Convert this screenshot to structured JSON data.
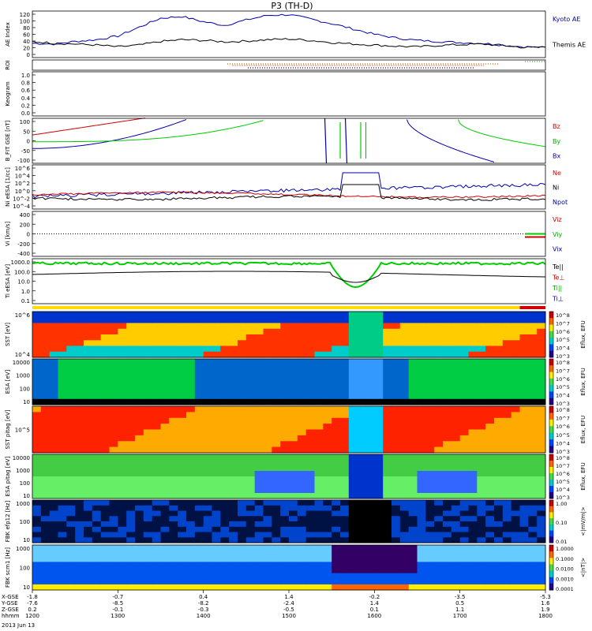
{
  "title": "P3 (TH-D)",
  "date_label": "2013 Jun 13",
  "footer": {
    "row_labels": [
      "X-GSE",
      "Y-GSE",
      "Z-GSE",
      "hhmm"
    ],
    "ticks": [
      {
        "x": "-1.8",
        "y": "-7.6",
        "z": "0.2",
        "t": "1200"
      },
      {
        "x": "-0.7",
        "y": "-8.5",
        "z": "-0.1",
        "t": "1300"
      },
      {
        "x": "0.4",
        "y": "-8.2",
        "z": "-0.3",
        "t": "1400"
      },
      {
        "x": "1.4",
        "y": "-2.4",
        "z": "-0.5",
        "t": "1500"
      },
      {
        "x": "-0.2",
        "y": "1.4",
        "z": "0.1",
        "t": "1600"
      },
      {
        "x": "-3.5",
        "y": "0.5",
        "z": "1.1",
        "t": "1700"
      },
      {
        "x": "-5.3",
        "y": "1.6",
        "z": "1.9",
        "t": "1800"
      }
    ]
  },
  "panels": [
    {
      "ylabel": "AE Index",
      "ticks": [
        "120",
        "100",
        "80",
        "60",
        "40",
        "20",
        "0"
      ],
      "right": [
        {
          "text": "Kyoto AE",
          "color": "#0000aa"
        },
        {
          "text": "Themis AE",
          "color": "#000000"
        }
      ]
    },
    {
      "ylabel": "ROI",
      "ticks": [],
      "right": []
    },
    {
      "ylabel": "Keogram",
      "ticks": [
        "1.0",
        "0.8",
        "0.6",
        "0.4",
        "0.2",
        "0.0"
      ],
      "right": []
    },
    {
      "ylabel": "B_FIT GSE [nT]",
      "ticks": [
        "100",
        "50",
        "0",
        "-50",
        "-100"
      ],
      "right": [
        {
          "text": "Bz",
          "color": "#cc0000"
        },
        {
          "text": "By",
          "color": "#00aa00"
        },
        {
          "text": "Bx",
          "color": "#0000aa"
        }
      ]
    },
    {
      "ylabel": "Ni eESA [1/cc]",
      "ticks": [
        "10^6",
        "10^4",
        "10^2",
        "10^0",
        "10^-2",
        "10^-4"
      ],
      "right": [
        {
          "text": "Ne",
          "color": "#cc0000"
        },
        {
          "text": "Ni",
          "color": "#000000"
        },
        {
          "text": "Npot",
          "color": "#0000aa"
        }
      ]
    },
    {
      "ylabel": "Vi [km/s]",
      "ticks": [
        "400",
        "200",
        "0",
        "-200",
        "-400"
      ],
      "right": [
        {
          "text": "Viz",
          "color": "#cc0000"
        },
        {
          "text": "Viy",
          "color": "#00aa00"
        },
        {
          "text": "Vix",
          "color": "#0000aa"
        }
      ]
    },
    {
      "ylabel": "Ti eESA [eV]",
      "ticks": [
        "1000.0",
        "100.0",
        "10.0",
        "1.0",
        "0.1"
      ],
      "right": [
        {
          "text": "Te||",
          "color": "#000000"
        },
        {
          "text": "Te⊥",
          "color": "#cc0000"
        },
        {
          "text": "Ti||",
          "color": "#00aa00"
        },
        {
          "text": "Ti⊥",
          "color": "#0000aa"
        }
      ]
    },
    {
      "ylabel": "SST [eV]",
      "ticks": [
        "10^6",
        "10^4"
      ],
      "right": []
    },
    {
      "ylabel": "ESA [eV]",
      "ticks": [
        "10000",
        "1000",
        "100",
        "10"
      ],
      "right": []
    },
    {
      "ylabel": "SST pitag [eV]",
      "ticks": [
        "10^5"
      ],
      "right": []
    },
    {
      "ylabel": "ESA pitag [eV]",
      "ticks": [
        "10000",
        "1000",
        "100",
        "10"
      ],
      "right": []
    },
    {
      "ylabel": "FBK efp12 [Hz]",
      "ticks": [
        "1000",
        "100",
        "10"
      ],
      "right": []
    },
    {
      "ylabel": "FBK scm1 [Hz]",
      "ticks": [
        "1000",
        "100",
        "10"
      ],
      "right": []
    }
  ],
  "colorbars": [
    {
      "title": "Eflux, EFU",
      "labels": [
        "10^8",
        "10^7",
        "10^6",
        "10^5",
        "10^4",
        "10^3"
      ]
    },
    {
      "title": "Eflux, EFU",
      "labels": [
        "10^8",
        "10^7",
        "10^6",
        "10^5",
        "10^4",
        "10^3"
      ]
    },
    {
      "title": "Eflux, EFU",
      "labels": [
        "10^8",
        "10^7",
        "10^6",
        "10^5",
        "10^4",
        "10^3"
      ]
    },
    {
      "title": "Eflux, EFU",
      "labels": [
        "10^8",
        "10^7",
        "10^6",
        "10^5",
        "10^4",
        "10^3"
      ]
    },
    {
      "title": "<|mV/m|>",
      "labels": [
        "1.00",
        "0.10",
        "0.01"
      ]
    },
    {
      "title": "<|nT|>",
      "labels": [
        "1.0000",
        "0.1000",
        "0.0100",
        "0.0010",
        "0.0001"
      ]
    }
  ],
  "chart_data": {
    "type": "line",
    "x_label": "hhmm",
    "x_range": [
      "1200",
      "1800"
    ],
    "series": [
      {
        "name": "Kyoto AE",
        "color": "#0000aa",
        "x": [
          "1200",
          "1215",
          "1230",
          "1245",
          "1300",
          "1315",
          "1330",
          "1345",
          "1400",
          "1415",
          "1430",
          "1445",
          "1500",
          "1515",
          "1530",
          "1545",
          "1600",
          "1615",
          "1630",
          "1645",
          "1700",
          "1715",
          "1730",
          "1745",
          "1800"
        ],
        "values": [
          40,
          38,
          45,
          50,
          60,
          85,
          110,
          115,
          100,
          90,
          105,
          118,
          120,
          108,
          95,
          80,
          65,
          55,
          48,
          45,
          42,
          40,
          35,
          30,
          28
        ]
      },
      {
        "name": "Themis AE",
        "color": "#000000",
        "x": [
          "1200",
          "1215",
          "1230",
          "1245",
          "1300",
          "1315",
          "1330",
          "1345",
          "1400",
          "1415",
          "1430",
          "1445",
          "1500",
          "1515",
          "1530",
          "1545",
          "1600",
          "1615",
          "1630",
          "1645",
          "1700",
          "1715",
          "1730",
          "1745",
          "1800"
        ],
        "values": [
          45,
          40,
          38,
          35,
          30,
          35,
          45,
          50,
          48,
          44,
          46,
          50,
          52,
          48,
          42,
          38,
          35,
          32,
          30,
          34,
          36,
          38,
          34,
          28,
          30
        ]
      }
    ],
    "ylim": [
      0,
      130
    ]
  }
}
